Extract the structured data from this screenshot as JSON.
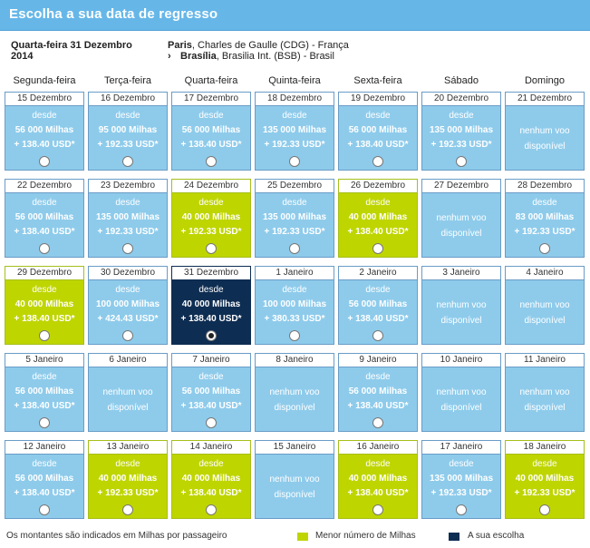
{
  "header": {
    "title": "Escolha a sua data de regresso"
  },
  "route": {
    "date_line1": "Quarta-feira 31 Dezembro",
    "date_line2": "2014",
    "origin_city": "Paris",
    "origin_detail": ", Charles de Gaulle (CDG) - França",
    "arrow": "›",
    "dest_city": "Brasília",
    "dest_detail": ", Brasilia Int. (BSB) - Brasil"
  },
  "days": [
    "Segunda-feira",
    "Terça-feira",
    "Quarta-feira",
    "Quinta-feira",
    "Sexta-feira",
    "Sábado",
    "Domingo"
  ],
  "text": {
    "from": "desde",
    "none_line1": "nenhum voo",
    "none_line2": "disponível"
  },
  "weeks": [
    [
      {
        "date": "15 Dezembro",
        "miles": "56 000 Milhas",
        "tax": "+ 138.40 USD*",
        "status": "normal"
      },
      {
        "date": "16 Dezembro",
        "miles": "95 000 Milhas",
        "tax": "+ 192.33 USD*",
        "status": "normal"
      },
      {
        "date": "17 Dezembro",
        "miles": "56 000 Milhas",
        "tax": "+ 138.40 USD*",
        "status": "normal"
      },
      {
        "date": "18 Dezembro",
        "miles": "135 000 Milhas",
        "tax": "+ 192.33 USD*",
        "status": "normal"
      },
      {
        "date": "19 Dezembro",
        "miles": "56 000 Milhas",
        "tax": "+ 138.40 USD*",
        "status": "normal"
      },
      {
        "date": "20 Dezembro",
        "miles": "135 000 Milhas",
        "tax": "+ 192.33 USD*",
        "status": "normal"
      },
      {
        "date": "21 Dezembro",
        "miles": "",
        "tax": "",
        "status": "none"
      }
    ],
    [
      {
        "date": "22 Dezembro",
        "miles": "56 000 Milhas",
        "tax": "+ 138.40 USD*",
        "status": "normal"
      },
      {
        "date": "23 Dezembro",
        "miles": "135 000 Milhas",
        "tax": "+ 192.33 USD*",
        "status": "normal"
      },
      {
        "date": "24 Dezembro",
        "miles": "40 000 Milhas",
        "tax": "+ 192.33 USD*",
        "status": "lowest"
      },
      {
        "date": "25 Dezembro",
        "miles": "135 000 Milhas",
        "tax": "+ 192.33 USD*",
        "status": "normal"
      },
      {
        "date": "26 Dezembro",
        "miles": "40 000 Milhas",
        "tax": "+ 138.40 USD*",
        "status": "lowest"
      },
      {
        "date": "27 Dezembro",
        "miles": "",
        "tax": "",
        "status": "none"
      },
      {
        "date": "28 Dezembro",
        "miles": "83 000 Milhas",
        "tax": "+ 192.33 USD*",
        "status": "normal"
      }
    ],
    [
      {
        "date": "29 Dezembro",
        "miles": "40 000 Milhas",
        "tax": "+ 138.40 USD*",
        "status": "lowest"
      },
      {
        "date": "30 Dezembro",
        "miles": "100 000 Milhas",
        "tax": "+ 424.43 USD*",
        "status": "normal"
      },
      {
        "date": "31 Dezembro",
        "miles": "40 000 Milhas",
        "tax": "+ 138.40 USD*",
        "status": "selected"
      },
      {
        "date": "1 Janeiro",
        "miles": "100 000 Milhas",
        "tax": "+ 380.33 USD*",
        "status": "normal"
      },
      {
        "date": "2 Janeiro",
        "miles": "56 000 Milhas",
        "tax": "+ 138.40 USD*",
        "status": "normal"
      },
      {
        "date": "3 Janeiro",
        "miles": "",
        "tax": "",
        "status": "none"
      },
      {
        "date": "4 Janeiro",
        "miles": "",
        "tax": "",
        "status": "none"
      }
    ],
    [
      {
        "date": "5 Janeiro",
        "miles": "56 000 Milhas",
        "tax": "+ 138.40 USD*",
        "status": "normal"
      },
      {
        "date": "6 Janeiro",
        "miles": "",
        "tax": "",
        "status": "none"
      },
      {
        "date": "7 Janeiro",
        "miles": "56 000 Milhas",
        "tax": "+ 138.40 USD*",
        "status": "normal"
      },
      {
        "date": "8 Janeiro",
        "miles": "",
        "tax": "",
        "status": "none"
      },
      {
        "date": "9 Janeiro",
        "miles": "56 000 Milhas",
        "tax": "+ 138.40 USD*",
        "status": "normal"
      },
      {
        "date": "10 Janeiro",
        "miles": "",
        "tax": "",
        "status": "none"
      },
      {
        "date": "11 Janeiro",
        "miles": "",
        "tax": "",
        "status": "none"
      }
    ],
    [
      {
        "date": "12 Janeiro",
        "miles": "56 000 Milhas",
        "tax": "+ 138.40 USD*",
        "status": "normal"
      },
      {
        "date": "13 Janeiro",
        "miles": "40 000 Milhas",
        "tax": "+ 192.33 USD*",
        "status": "lowest"
      },
      {
        "date": "14 Janeiro",
        "miles": "40 000 Milhas",
        "tax": "+ 138.40 USD*",
        "status": "lowest"
      },
      {
        "date": "15 Janeiro",
        "miles": "",
        "tax": "",
        "status": "none"
      },
      {
        "date": "16 Janeiro",
        "miles": "40 000 Milhas",
        "tax": "+ 138.40 USD*",
        "status": "lowest"
      },
      {
        "date": "17 Janeiro",
        "miles": "135 000 Milhas",
        "tax": "+ 192.33 USD*",
        "status": "normal"
      },
      {
        "date": "18 Janeiro",
        "miles": "40 000 Milhas",
        "tax": "+ 192.33 USD*",
        "status": "lowest"
      }
    ]
  ],
  "footer": {
    "note": "Os montantes são indicados em Milhas por passageiro",
    "legend_lowest": "Menor número de Milhas",
    "legend_selected": "A sua escolha"
  },
  "colors": {
    "header": "#66b7e8",
    "cell_normal": "#8ecbeb",
    "cell_lowest": "#bfd500",
    "cell_selected": "#0e2d52"
  }
}
